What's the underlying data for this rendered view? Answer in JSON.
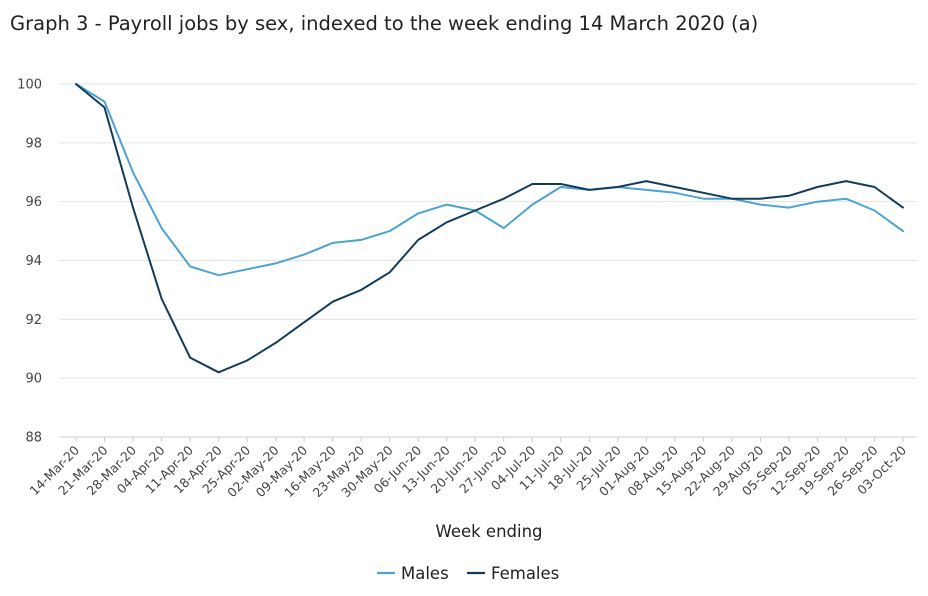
{
  "chart_data": {
    "type": "line",
    "title": "Graph 3 - Payroll jobs by sex, indexed to the week ending 14 March 2020 (a)",
    "xlabel": "Week ending",
    "ylabel": "",
    "ylim": [
      88,
      100
    ],
    "yticks": [
      88,
      90,
      92,
      94,
      96,
      98,
      100
    ],
    "grid": true,
    "legend_position": "bottom-center",
    "categories": [
      "14-Mar-20",
      "21-Mar-20",
      "28-Mar-20",
      "04-Apr-20",
      "11-Apr-20",
      "18-Apr-20",
      "25-Apr-20",
      "02-May-20",
      "09-May-20",
      "16-May-20",
      "23-May-20",
      "30-May-20",
      "06-Jun-20",
      "13-Jun-20",
      "20-Jun-20",
      "27-Jun-20",
      "04-Jul-20",
      "11-Jul-20",
      "18-Jul-20",
      "25-Jul-20",
      "01-Aug-20",
      "08-Aug-20",
      "15-Aug-20",
      "22-Aug-20",
      "29-Aug-20",
      "05-Sep-20",
      "12-Sep-20",
      "19-Sep-20",
      "26-Sep-20",
      "03-Oct-20"
    ],
    "series": [
      {
        "name": "Males",
        "color": "#4ba3d3",
        "values": [
          100,
          99.4,
          97.0,
          95.1,
          93.8,
          93.5,
          93.7,
          93.9,
          94.2,
          94.6,
          94.7,
          95.0,
          95.6,
          95.9,
          95.7,
          95.1,
          95.9,
          96.5,
          96.4,
          96.5,
          96.4,
          96.3,
          96.1,
          96.1,
          95.9,
          95.8,
          96.0,
          96.1,
          95.7,
          95.0
        ]
      },
      {
        "name": "Females",
        "color": "#123c5c",
        "values": [
          100,
          99.2,
          95.8,
          92.7,
          90.7,
          90.2,
          90.6,
          91.2,
          91.9,
          92.6,
          93.0,
          93.6,
          94.7,
          95.3,
          95.7,
          96.1,
          96.6,
          96.6,
          96.4,
          96.5,
          96.7,
          96.5,
          96.3,
          96.1,
          96.1,
          96.2,
          96.5,
          96.7,
          96.5,
          95.8
        ]
      }
    ]
  }
}
